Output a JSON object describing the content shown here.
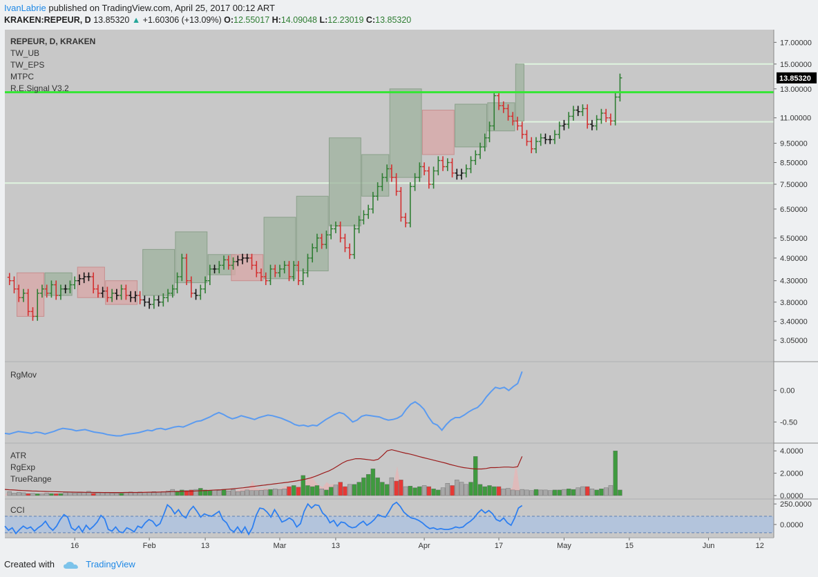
{
  "header": {
    "author": "IvanLabrie",
    "published_text": "published on TradingView.com, April 25, 2017 00:12 ART",
    "symbol": "KRAKEN:REPEUR, D",
    "last": "13.85320",
    "change": "+1.60306 (+13.09%)",
    "open_label": "O:",
    "open": "12.55017",
    "high_label": "H:",
    "high": "14.09048",
    "low_label": "L:",
    "low": "12.23019",
    "close_label": "C:",
    "close": "13.85320"
  },
  "footer": {
    "created_with": "Created with",
    "brand": "TradingView"
  },
  "colors": {
    "bull": "#2e7d32",
    "bear": "#d32f2f",
    "neutral": "#111111",
    "signal_line": "#33e633",
    "level_line": "#dff5df",
    "rgmov": "#5b9bf0",
    "atr": "#9b1b1b",
    "cci": "#2d7ff0",
    "panel_bg": "#c8c8c8",
    "box_green": "#9fb39f",
    "box_red": "#d9a7a7"
  },
  "chart_data": [
    {
      "type": "ohlc",
      "title": "REPEUR, D, KRAKEN",
      "indicator_labels": [
        "TW_UB",
        "TW_EPS",
        "MTPC",
        "R.E.Signal V3.2"
      ],
      "last_price_label": "13.85320",
      "y_ticks": [
        "17.00000",
        "15.00000",
        "13.00000",
        "11.00000",
        "9.50000",
        "8.50000",
        "7.50000",
        "6.50000",
        "5.50000",
        "4.90000",
        "4.30000",
        "3.80000",
        "3.40000",
        "3.05000"
      ],
      "y_tick_values": [
        17.0,
        15.0,
        13.0,
        11.0,
        9.5,
        8.5,
        7.5,
        6.5,
        5.5,
        4.9,
        4.3,
        3.8,
        3.4,
        3.05
      ],
      "y_scale": "log",
      "ylim": [
        2.75,
        18.0
      ],
      "signal_level": 12.75,
      "levels": [
        15.0,
        10.75,
        7.55
      ],
      "x_ticks": [
        "16",
        "Feb",
        "13",
        "Mar",
        "13",
        "Apr",
        "17",
        "May",
        "15",
        "Jun",
        "12"
      ],
      "x_tick_days": [
        16,
        32,
        44,
        60,
        72,
        91,
        107,
        121,
        135,
        152,
        163
      ],
      "xlim": [
        1.0,
        166.0
      ],
      "close": [
        4.3,
        4.1,
        3.9,
        4.0,
        3.6,
        3.5,
        4.0,
        4.1,
        4.0,
        4.2,
        3.95,
        4.1,
        4.1,
        4.2,
        4.3,
        4.35,
        4.4,
        4.4,
        4.1,
        4.0,
        4.05,
        3.9,
        4.0,
        3.95,
        4.1,
        3.95,
        3.9,
        3.95,
        3.85,
        3.8,
        3.75,
        3.85,
        3.8,
        3.9,
        4.0,
        4.1,
        4.4,
        4.9,
        4.3,
        4.0,
        3.95,
        4.1,
        4.3,
        4.6,
        4.6,
        4.7,
        4.85,
        4.7,
        4.8,
        4.85,
        4.9,
        4.9,
        4.7,
        4.5,
        4.4,
        4.3,
        4.6,
        4.5,
        4.6,
        4.7,
        4.4,
        4.7,
        4.3,
        4.5,
        4.9,
        5.2,
        5.5,
        5.3,
        5.6,
        5.8,
        5.9,
        5.5,
        5.2,
        5.0,
        5.8,
        6.1,
        6.3,
        6.5,
        7.0,
        7.4,
        7.8,
        8.2,
        7.8,
        7.2,
        6.2,
        6.0,
        7.4,
        7.8,
        8.3,
        8.1,
        7.5,
        8.1,
        8.6,
        8.3,
        8.5,
        8.0,
        7.9,
        8.0,
        8.2,
        8.6,
        8.9,
        9.3,
        9.8,
        10.5,
        12.5,
        11.8,
        11.6,
        11.1,
        10.8,
        10.5,
        10.0,
        9.6,
        9.2,
        9.6,
        9.8,
        9.7,
        9.7,
        10.0,
        10.5,
        10.6,
        11.1,
        11.5,
        11.4,
        11.6,
        10.6,
        10.5,
        10.9,
        11.3,
        11.0,
        10.8,
        12.4,
        13.85
      ],
      "boxes": [
        {
          "from": 2,
          "to": 7,
          "low": 3.5,
          "high": 4.5,
          "bias": "bear"
        },
        {
          "from": 8,
          "to": 13,
          "low": 3.95,
          "high": 4.5,
          "bias": "bull"
        },
        {
          "from": 15,
          "to": 20,
          "low": 3.9,
          "high": 4.65,
          "bias": "bear"
        },
        {
          "from": 21,
          "to": 27,
          "low": 3.75,
          "high": 4.3,
          "bias": "bear"
        },
        {
          "from": 29,
          "to": 35,
          "low": 3.95,
          "high": 5.15,
          "bias": "bull"
        },
        {
          "from": 36,
          "to": 42,
          "low": 4.25,
          "high": 5.7,
          "bias": "bull"
        },
        {
          "from": 43,
          "to": 48,
          "low": 4.45,
          "high": 5.0,
          "bias": "bull"
        },
        {
          "from": 48,
          "to": 54,
          "low": 4.3,
          "high": 5.0,
          "bias": "bear"
        },
        {
          "from": 55,
          "to": 61,
          "low": 4.35,
          "high": 6.2,
          "bias": "bull"
        },
        {
          "from": 62,
          "to": 68,
          "low": 4.55,
          "high": 7.0,
          "bias": "bull"
        },
        {
          "from": 69,
          "to": 75,
          "low": 5.9,
          "high": 9.8,
          "bias": "bull"
        },
        {
          "from": 76,
          "to": 81,
          "low": 7.0,
          "high": 8.9,
          "bias": "bull"
        },
        {
          "from": 82,
          "to": 88,
          "low": 7.8,
          "high": 13.0,
          "bias": "bull"
        },
        {
          "from": 89,
          "to": 95,
          "low": 8.9,
          "high": 11.5,
          "bias": "bear"
        },
        {
          "from": 96,
          "to": 102,
          "low": 9.3,
          "high": 11.9,
          "bias": "bull"
        },
        {
          "from": 103,
          "to": 108,
          "low": 10.2,
          "high": 12.0,
          "bias": "bull"
        },
        {
          "from": 109,
          "to": 110,
          "low": 10.8,
          "high": 15.0,
          "bias": "bull"
        }
      ]
    },
    {
      "type": "line",
      "title": "RgMov",
      "y_ticks": [
        "0.00",
        "-0.50"
      ],
      "y_tick_values": [
        0.0,
        -0.5
      ],
      "ylim": [
        -0.78,
        0.38
      ],
      "values": [
        -0.68,
        -0.69,
        -0.67,
        -0.65,
        -0.66,
        -0.67,
        -0.68,
        -0.66,
        -0.67,
        -0.69,
        -0.67,
        -0.65,
        -0.62,
        -0.6,
        -0.61,
        -0.62,
        -0.64,
        -0.63,
        -0.62,
        -0.64,
        -0.66,
        -0.67,
        -0.68,
        -0.7,
        -0.71,
        -0.72,
        -0.72,
        -0.7,
        -0.69,
        -0.68,
        -0.67,
        -0.65,
        -0.63,
        -0.64,
        -0.61,
        -0.6,
        -0.62,
        -0.6,
        -0.58,
        -0.57,
        -0.58,
        -0.55,
        -0.52,
        -0.49,
        -0.48,
        -0.45,
        -0.42,
        -0.38,
        -0.35,
        -0.38,
        -0.42,
        -0.45,
        -0.43,
        -0.4,
        -0.42,
        -0.44,
        -0.46,
        -0.43,
        -0.41,
        -0.39,
        -0.4,
        -0.42,
        -0.44,
        -0.47,
        -0.5,
        -0.54,
        -0.56,
        -0.55,
        -0.57,
        -0.55,
        -0.56,
        -0.51,
        -0.46,
        -0.42,
        -0.38,
        -0.35,
        -0.37,
        -0.43,
        -0.5,
        -0.47,
        -0.41,
        -0.39,
        -0.4,
        -0.41,
        -0.42,
        -0.45,
        -0.47,
        -0.46,
        -0.44,
        -0.4,
        -0.3,
        -0.22,
        -0.18,
        -0.23,
        -0.3,
        -0.42,
        -0.52,
        -0.55,
        -0.63,
        -0.54,
        -0.47,
        -0.43,
        -0.43,
        -0.39,
        -0.34,
        -0.3,
        -0.27,
        -0.2,
        -0.1,
        -0.02,
        0.05,
        0.03,
        0.05,
        0.0,
        0.06,
        0.11,
        0.3
      ]
    },
    {
      "type": "bar",
      "title": "ATR",
      "series_names": [
        "ATR",
        "RgExp",
        "TrueRange"
      ],
      "y_ticks": [
        "4.0000",
        "2.0000",
        "0.0000"
      ],
      "y_tick_values": [
        4.0,
        2.0,
        0.0
      ],
      "ylim": [
        0.0,
        4.2
      ],
      "atr": [
        0.55,
        0.52,
        0.5,
        0.47,
        0.45,
        0.43,
        0.41,
        0.4,
        0.38,
        0.37,
        0.36,
        0.35,
        0.34,
        0.33,
        0.32,
        0.31,
        0.3,
        0.3,
        0.29,
        0.29,
        0.28,
        0.28,
        0.27,
        0.27,
        0.27,
        0.27,
        0.27,
        0.28,
        0.28,
        0.28,
        0.28,
        0.29,
        0.3,
        0.3,
        0.31,
        0.32,
        0.33,
        0.35,
        0.36,
        0.37,
        0.38,
        0.39,
        0.4,
        0.42,
        0.44,
        0.46,
        0.48,
        0.5,
        0.52,
        0.55,
        0.58,
        0.62,
        0.66,
        0.7,
        0.75,
        0.8,
        0.85,
        0.9,
        0.95,
        1.0,
        1.05,
        1.1,
        1.15,
        1.2,
        1.26,
        1.32,
        1.4,
        1.48,
        1.58,
        1.72,
        1.88,
        2.05,
        2.2,
        2.4,
        2.65,
        2.9,
        3.1,
        3.2,
        3.3,
        3.3,
        3.25,
        3.2,
        3.15,
        3.25,
        3.6,
        4.0,
        4.1,
        4.0,
        3.9,
        3.8,
        3.72,
        3.62,
        3.5,
        3.4,
        3.3,
        3.2,
        3.1,
        3.0,
        2.9,
        2.78,
        2.68,
        2.58,
        2.5,
        2.45,
        2.4,
        2.38,
        2.38,
        2.42,
        2.5,
        2.5,
        2.52,
        2.55,
        2.55,
        2.52,
        2.58,
        3.5
      ],
      "true_range": [
        0.35,
        0.22,
        0.3,
        0.25,
        0.18,
        0.2,
        0.16,
        0.15,
        0.22,
        0.18,
        0.32,
        0.17,
        0.18,
        0.28,
        0.3,
        0.22,
        0.25,
        0.28,
        0.38,
        0.2,
        0.25,
        0.28,
        0.3,
        0.2,
        0.22,
        0.2,
        0.3,
        0.32,
        0.28,
        0.32,
        0.3,
        0.28,
        0.3,
        0.35,
        0.32,
        0.36,
        0.42,
        0.55,
        0.4,
        0.5,
        0.45,
        0.5,
        0.55,
        0.65,
        0.5,
        0.45,
        0.5,
        0.45,
        0.55,
        0.45,
        0.42,
        0.55,
        0.35,
        0.4,
        0.5,
        0.45,
        0.45,
        0.48,
        0.5,
        0.55,
        0.6,
        0.55,
        0.6,
        0.8,
        0.9,
        0.75,
        1.8,
        0.9,
        0.8,
        0.85,
        0.9,
        0.6,
        0.5,
        0.75,
        0.95,
        1.2,
        0.8,
        1.0,
        1.0,
        1.2,
        1.6,
        1.9,
        2.4,
        1.6,
        1.2,
        1.0,
        1.6,
        1.3,
        1.4,
        0.9,
        0.8,
        0.85,
        0.7,
        0.8,
        0.9,
        0.8,
        0.6,
        0.5,
        0.7,
        1.1,
        0.9,
        1.4,
        1.2,
        1.0,
        1.2,
        3.5,
        1.0,
        0.8,
        1.1,
        0.9,
        0.8,
        0.8,
        0.6,
        0.65,
        0.5,
        0.45,
        0.55,
        0.5,
        0.45,
        0.55,
        0.5,
        0.5,
        0.45,
        0.5,
        0.5,
        0.55,
        0.6,
        0.55,
        0.55,
        0.7,
        0.8,
        0.8,
        0.6,
        0.5,
        0.6,
        0.7,
        0.9,
        4.0,
        0.5
      ]
    },
    {
      "type": "line",
      "title": "CCI",
      "y_ticks": [
        "250.0000",
        "0.0000"
      ],
      "y_tick_values": [
        250.0,
        0.0
      ],
      "ylim": [
        -135.0,
        285.0
      ],
      "bands": [
        100.0,
        -100.0
      ],
      "values": [
        -20,
        -70,
        -40,
        -110,
        -60,
        -20,
        -50,
        -30,
        -80,
        -40,
        -10,
        40,
        -30,
        -70,
        -20,
        60,
        120,
        90,
        -40,
        -70,
        -20,
        -90,
        -10,
        -60,
        -20,
        30,
        110,
        70,
        -60,
        -80,
        -30,
        -90,
        -100,
        -40,
        -60,
        -90,
        -20,
        -40,
        20,
        60,
        40,
        -20,
        10,
        120,
        240,
        200,
        130,
        180,
        110,
        80,
        170,
        220,
        160,
        90,
        130,
        110,
        100,
        130,
        160,
        60,
        20,
        -60,
        -90,
        -30,
        -100,
        -30,
        -120,
        -40,
        110,
        200,
        190,
        150,
        90,
        180,
        110,
        30,
        50,
        80,
        50,
        -30,
        10,
        160,
        250,
        200,
        240,
        230,
        140,
        100,
        20,
        50,
        -20,
        30,
        20,
        -20,
        -40,
        -30,
        10,
        40,
        -10,
        20,
        60,
        120,
        100,
        90,
        160,
        240,
        270,
        220,
        150,
        110,
        80,
        70,
        50,
        20,
        -20,
        -50,
        -40,
        -60,
        -50,
        -60,
        -60,
        -50,
        -30,
        -40,
        -30,
        10,
        40,
        80,
        140,
        180,
        140,
        170,
        130,
        60,
        40,
        80,
        20,
        -10,
        80,
        200,
        230
      ]
    }
  ]
}
